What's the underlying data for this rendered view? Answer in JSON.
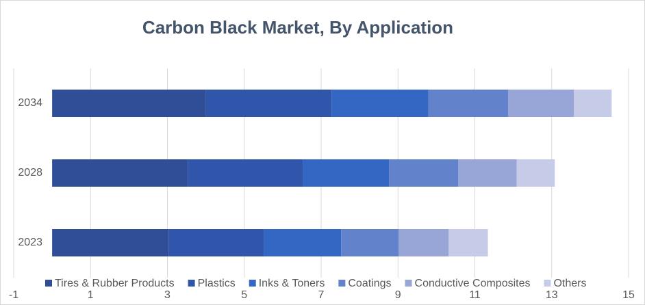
{
  "chart_data": {
    "type": "stacked-bar-horizontal",
    "title": "Carbon Black Market, By Application",
    "categories": [
      "2023",
      "2028",
      "2034"
    ],
    "series": [
      {
        "name": "Tires & Rubber Products",
        "color": "#2f4e97",
        "values": [
          3.03,
          3.53,
          4.0
        ]
      },
      {
        "name": "Plastics",
        "color": "#2f56aa",
        "values": [
          2.48,
          2.99,
          3.27
        ]
      },
      {
        "name": "Inks & Toners",
        "color": "#3467c4",
        "values": [
          2.01,
          2.25,
          2.52
        ]
      },
      {
        "name": "Coatings",
        "color": "#6283cc",
        "values": [
          1.5,
          1.8,
          2.08
        ]
      },
      {
        "name": "Conductive Composites",
        "color": "#97a6d7",
        "values": [
          1.3,
          1.52,
          1.71
        ]
      },
      {
        "name": "Others",
        "color": "#c6cce8",
        "values": [
          1.02,
          0.99,
          0.98
        ]
      }
    ],
    "xlim": [
      -1,
      15
    ],
    "xticks": [
      -1,
      1,
      3,
      5,
      7,
      9,
      11,
      13,
      15
    ],
    "grid": true,
    "legend": "bottom"
  }
}
